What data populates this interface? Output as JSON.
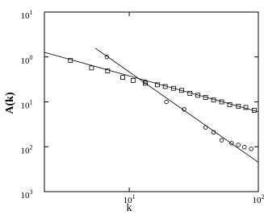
{
  "chart_data": {
    "type": "scatter",
    "xlabel": "k",
    "ylabel": "A(k)",
    "log_x": true,
    "log_y": true,
    "color": "#000000",
    "xlim": [
      2.2,
      100
    ],
    "ylim": [
      0.001,
      10
    ],
    "xticks": [
      {
        "value": 10,
        "label": "10",
        "exp": "1"
      },
      {
        "value": 100,
        "label": "10",
        "exp": "2"
      }
    ],
    "yticks": [
      {
        "value": 10,
        "label": "10",
        "exp": "1"
      },
      {
        "value": 1,
        "label": "10",
        "exp": "0"
      },
      {
        "value": 0.1,
        "label": "10",
        "exp": "1"
      },
      {
        "value": 0.01,
        "label": "10",
        "exp": "2"
      },
      {
        "value": 0.001,
        "label": "10",
        "exp": "3"
      }
    ],
    "series": [
      {
        "marker": "square",
        "x": [
          3.5,
          5.1,
          6.8,
          8.9,
          10.7,
          13.3,
          16.5,
          19,
          22,
          25.5,
          29.5,
          34,
          39,
          45,
          52,
          60,
          70,
          80,
          93
        ],
        "values": [
          0.84,
          0.57,
          0.49,
          0.35,
          0.3,
          0.26,
          0.24,
          0.22,
          0.2,
          0.18,
          0.155,
          0.14,
          0.125,
          0.11,
          0.1,
          0.087,
          0.08,
          0.075,
          0.065
        ]
      },
      {
        "marker": "circle",
        "x": [
          6.7,
          13.3,
          19.4,
          26.6,
          39,
          45,
          52,
          62,
          70,
          78,
          88
        ],
        "values": [
          1.0,
          0.28,
          0.1,
          0.068,
          0.027,
          0.021,
          0.014,
          0.012,
          0.011,
          0.0098,
          0.009
        ]
      }
    ],
    "fits": [
      {
        "x": [
          2.2,
          100
        ],
        "values": [
          1.27,
          0.06
        ]
      },
      {
        "x": [
          5.47,
          100
        ],
        "values": [
          1.56,
          0.0045
        ]
      }
    ]
  }
}
